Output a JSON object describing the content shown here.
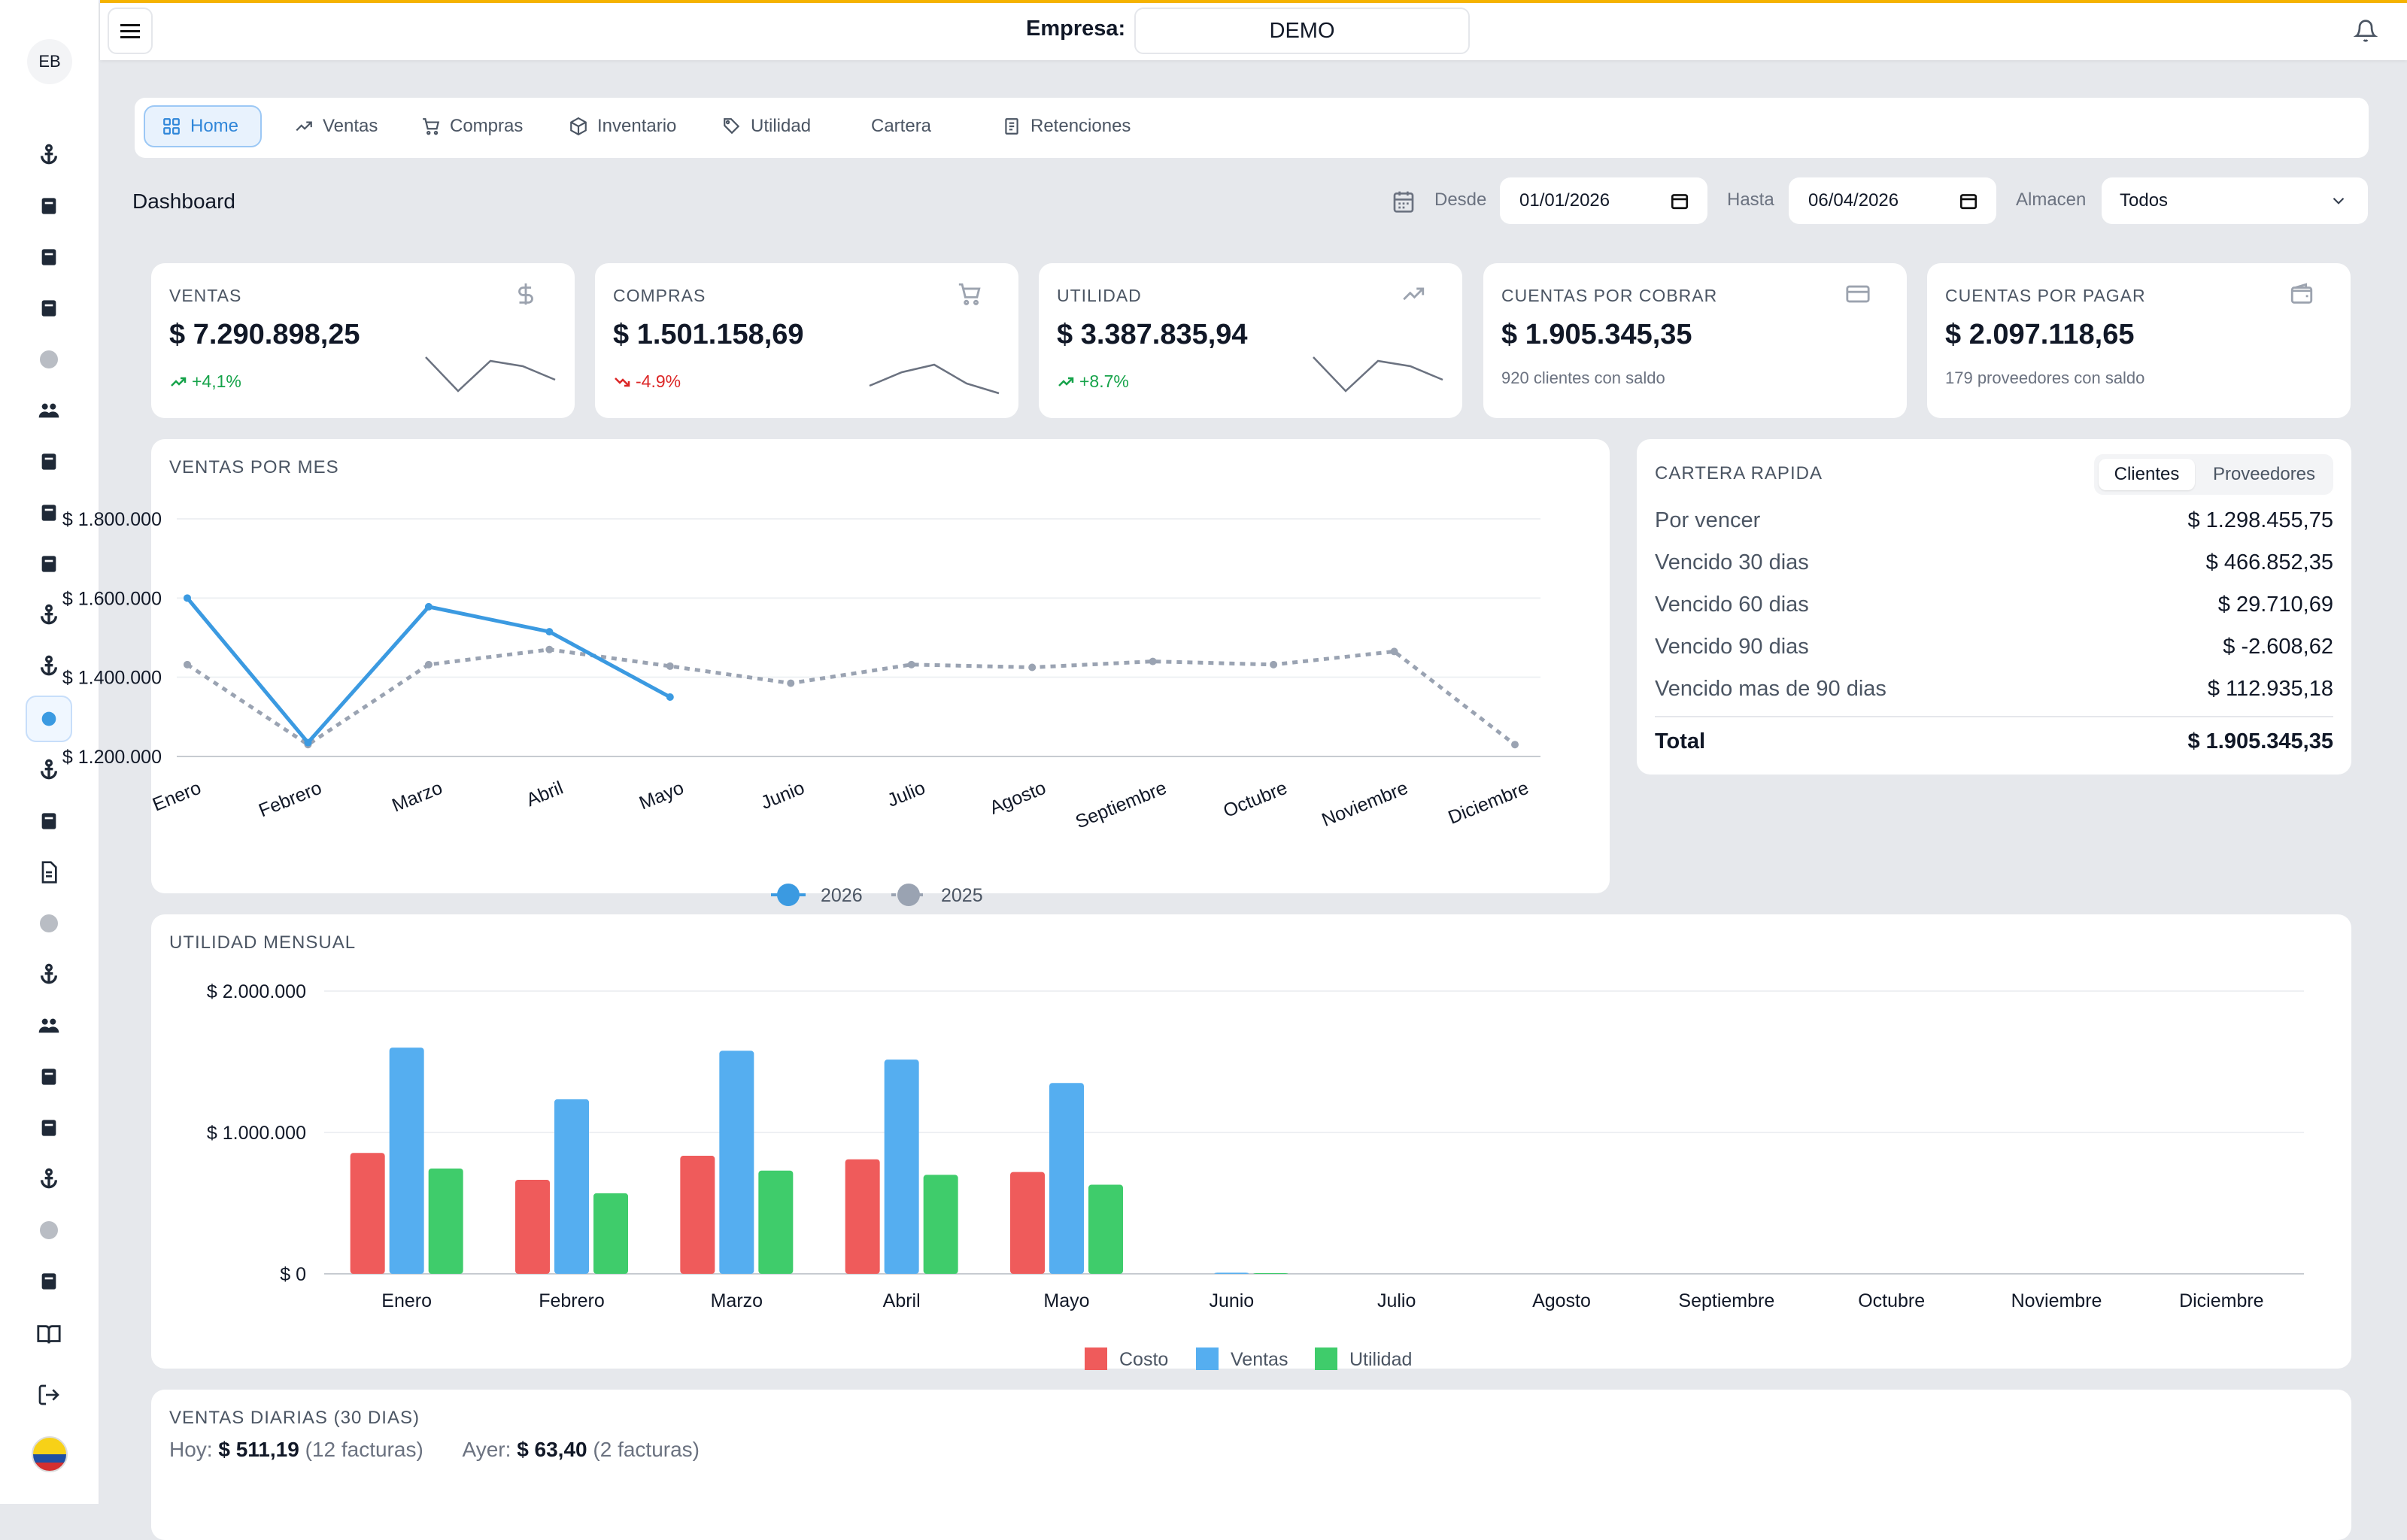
{
  "header": {
    "empresa_label": "Empresa:",
    "empresa_value": "DEMO"
  },
  "sidebar": {
    "avatar_initials": "EB"
  },
  "tabs": [
    {
      "label": "Home",
      "icon": "grid-icon"
    },
    {
      "label": "Ventas",
      "icon": "trend-up-icon"
    },
    {
      "label": "Compras",
      "icon": "cart-icon"
    },
    {
      "label": "Inventario",
      "icon": "box-icon"
    },
    {
      "label": "Utilidad",
      "icon": "tag-icon"
    },
    {
      "label": "Cartera",
      "icon": "wallet-icon"
    },
    {
      "label": "Retenciones",
      "icon": "receipt-icon"
    }
  ],
  "dashboard": {
    "title": "Dashboard",
    "desde_label": "Desde",
    "desde_value": "01/01/2026",
    "hasta_label": "Hasta",
    "hasta_value": "06/04/2026",
    "almacen_label": "Almacen",
    "almacen_value": "Todos"
  },
  "kpis": [
    {
      "title": "VENTAS",
      "value": "$ 7.290.898,25",
      "sub": "+4,1%",
      "trend": "up",
      "icon": "dollar-icon"
    },
    {
      "title": "COMPRAS",
      "value": "$ 1.501.158,69",
      "sub": "-4.9%",
      "trend": "down",
      "icon": "cart-icon"
    },
    {
      "title": "UTILIDAD",
      "value": "$ 3.387.835,94",
      "sub": "+8.7%",
      "trend": "up",
      "icon": "trend-up-icon"
    },
    {
      "title": "CUENTAS POR COBRAR",
      "value": "$ 1.905.345,35",
      "sub": "920 clientes con saldo",
      "trend": "none",
      "icon": "card-icon"
    },
    {
      "title": "CUENTAS POR PAGAR",
      "value": "$ 2.097.118,65",
      "sub": "179 proveedores con saldo",
      "trend": "none",
      "icon": "wallet-icon"
    }
  ],
  "ventas_por_mes": {
    "title": "VENTAS POR MES"
  },
  "utilidad_mensual": {
    "title": "UTILIDAD MENSUAL"
  },
  "cartera": {
    "title": "CARTERA RAPIDA",
    "toggle": [
      "Clientes",
      "Proveedores"
    ],
    "rows": [
      {
        "label": "Por vencer",
        "value": "$ 1.298.455,75"
      },
      {
        "label": "Vencido 30 dias",
        "value": "$ 466.852,35"
      },
      {
        "label": "Vencido 60 dias",
        "value": "$ 29.710,69"
      },
      {
        "label": "Vencido 90 dias",
        "value": "$ -2.608,62"
      },
      {
        "label": "Vencido mas de 90 dias",
        "value": "$ 112.935,18"
      }
    ],
    "total_label": "Total",
    "total_value": "$ 1.905.345,35"
  },
  "ventas_diarias": {
    "title": "VENTAS DIARIAS (30 DIAS)",
    "hoy_label": "Hoy:",
    "hoy_value": "$ 511,19",
    "hoy_facturas": "(12 facturas)",
    "ayer_label": "Ayer:",
    "ayer_value": "$ 63,40",
    "ayer_facturas": "(2 facturas)"
  },
  "colors": {
    "accent": "#2f86d9",
    "line2026": "#3b9ae1",
    "line2025": "#9aa3b2",
    "costo": "#ef5b5b",
    "ventas": "#55aef0",
    "utilidad": "#3fcc6b",
    "positive": "#16a34a",
    "negative": "#dc2626"
  },
  "chart_data": [
    {
      "type": "line",
      "categories": [
        "Enero",
        "Febrero",
        "Marzo",
        "Abril",
        "Mayo",
        "Junio",
        "Julio",
        "Agosto",
        "Septiembre",
        "Octubre",
        "Noviembre",
        "Diciembre"
      ],
      "series": [
        {
          "name": "2026",
          "values": [
            1600000,
            1235000,
            1578000,
            1515000,
            1350000,
            null,
            null,
            null,
            null,
            null,
            null,
            null
          ]
        },
        {
          "name": "2025",
          "values": [
            1432000,
            1230000,
            1432000,
            1470000,
            1428000,
            1385000,
            1432000,
            1425000,
            1440000,
            1432000,
            1465000,
            1230000
          ]
        }
      ],
      "y_ticks": [
        "$ 1.200.000",
        "$ 1.400.000",
        "$ 1.600.000",
        "$ 1.800.000"
      ],
      "ylim": [
        1200000,
        1800000
      ],
      "grid": true,
      "legend": "bottom"
    },
    {
      "type": "bar",
      "categories": [
        "Enero",
        "Febrero",
        "Marzo",
        "Abril",
        "Mayo",
        "Junio",
        "Julio",
        "Agosto",
        "Septiembre",
        "Octubre",
        "Noviembre",
        "Diciembre"
      ],
      "series": [
        {
          "name": "Costo",
          "values": [
            855000,
            665000,
            835000,
            810000,
            720000,
            0,
            0,
            0,
            0,
            0,
            0,
            0
          ]
        },
        {
          "name": "Ventas",
          "values": [
            1600000,
            1235000,
            1578000,
            1515000,
            1350000,
            8000,
            0,
            0,
            0,
            0,
            0,
            0
          ]
        },
        {
          "name": "Utilidad",
          "values": [
            745000,
            570000,
            730000,
            700000,
            630000,
            5000,
            0,
            0,
            0,
            0,
            0,
            0
          ]
        }
      ],
      "y_ticks": [
        "$ 0",
        "$ 1.000.000",
        "$ 2.000.000"
      ],
      "ylim": [
        0,
        2000000
      ],
      "grid": true,
      "legend": "bottom"
    }
  ]
}
